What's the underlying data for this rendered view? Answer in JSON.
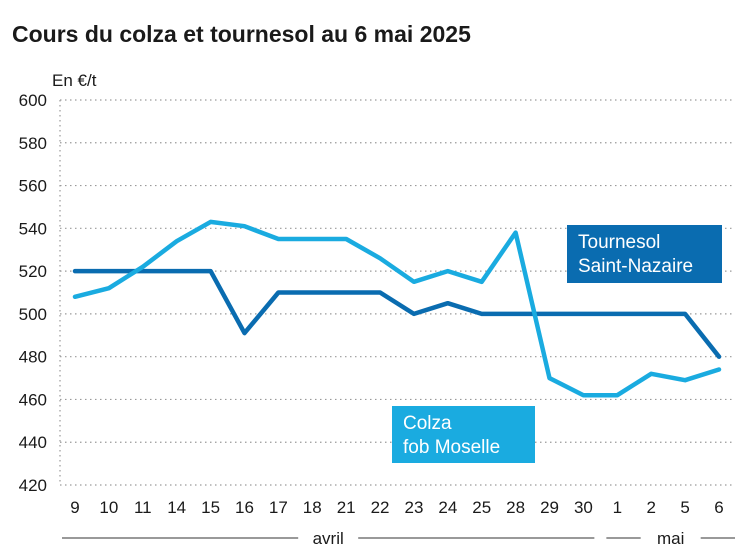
{
  "chart_data": {
    "type": "line",
    "title": "Cours du colza et tournesol au 6 mai 2025",
    "ylabel": "En €/t",
    "ylim": [
      420,
      600
    ],
    "yticks": [
      420,
      440,
      460,
      480,
      500,
      520,
      540,
      560,
      580,
      600
    ],
    "categories": [
      "9",
      "10",
      "11",
      "14",
      "15",
      "16",
      "17",
      "18",
      "21",
      "22",
      "23",
      "24",
      "25",
      "28",
      "29",
      "30",
      "1",
      "2",
      "5",
      "6"
    ],
    "month_labels": [
      "avril",
      "mai"
    ],
    "grid": "horizontal-dotted",
    "series": [
      {
        "name": "Tournesol Saint-Nazaire",
        "label_lines": [
          "Tournesol",
          "Saint-Nazaire"
        ],
        "color": "#0a6cb0",
        "values": [
          520,
          520,
          520,
          520,
          520,
          491,
          510,
          510,
          510,
          510,
          500,
          505,
          500,
          500,
          500,
          500,
          500,
          500,
          500,
          480
        ]
      },
      {
        "name": "Colza fob Moselle",
        "label_lines": [
          "Colza",
          "fob Moselle"
        ],
        "color": "#1aabe0",
        "values": [
          508,
          512,
          522,
          534,
          543,
          541,
          535,
          535,
          535,
          526,
          515,
          520,
          515,
          538,
          470,
          462,
          462,
          472,
          469,
          474
        ]
      }
    ]
  }
}
